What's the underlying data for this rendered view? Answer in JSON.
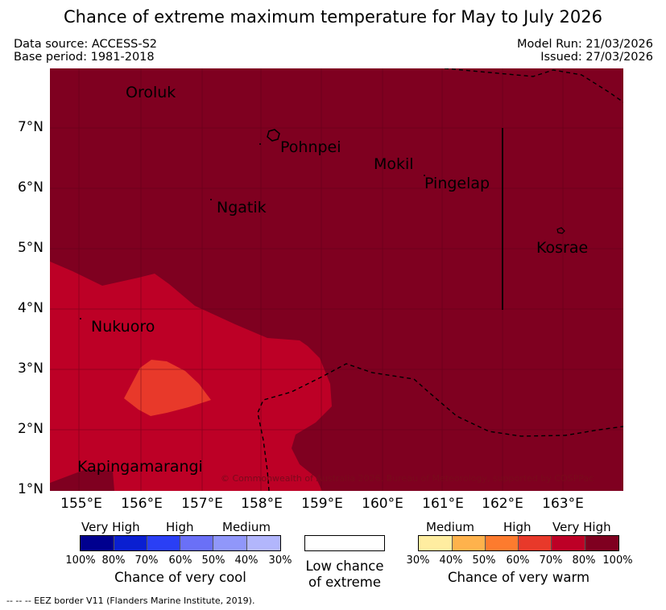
{
  "title": "Chance of extreme maximum temperature for May to July 2026",
  "meta": {
    "data_source": "Data source: ACCESS-S2",
    "base_period": "Base period: 1981-2018",
    "model_run": "Model Run: 21/03/2026",
    "issued": "Issued: 27/03/2026"
  },
  "map": {
    "lat_labels": [
      "7°N",
      "6°N",
      "5°N",
      "4°N",
      "3°N",
      "2°N",
      "1°N"
    ],
    "lon_labels": [
      "155°E",
      "156°E",
      "157°E",
      "158°E",
      "159°E",
      "160°E",
      "161°E",
      "162°E",
      "163°E"
    ],
    "places": {
      "oroluk": "Oroluk",
      "pohnpei": "Pohnpei",
      "mokil": "Mokil",
      "pingelap": "Pingelap",
      "ngatik": "Ngatik",
      "kosrae": "Kosrae",
      "nukuoro": "Nukuoro",
      "kapingamarangi": "Kapingamarangi"
    },
    "credit": "© Commonwealth of Australia 2026, Bureau of Meteorology, supported by COSPPac",
    "colors": {
      "very_high_warm": "#7f0020",
      "high_warm": "#bd0026",
      "medium_warm": "#e8392a"
    }
  },
  "legend": {
    "cool": {
      "levels": [
        "Very High",
        "High",
        "Medium"
      ],
      "percents": [
        "100%",
        "80%",
        "70%",
        "60%",
        "50%",
        "40%",
        "30%"
      ],
      "caption": "Chance of very cool",
      "colors": [
        "#00008f",
        "#0a1fd1",
        "#2a3ff5",
        "#6a70f7",
        "#9097fa",
        "#b2b6fc"
      ]
    },
    "neutral": {
      "caption_line1": "Low chance",
      "caption_line2": "of extreme"
    },
    "warm": {
      "levels": [
        "Medium",
        "High",
        "Very High"
      ],
      "percents": [
        "30%",
        "40%",
        "50%",
        "60%",
        "70%",
        "80%",
        "100%"
      ],
      "caption": "Chance of very warm",
      "colors": [
        "#ffeda0",
        "#feb24c",
        "#fd7b2e",
        "#e8392a",
        "#bd0026",
        "#7f0020"
      ]
    }
  },
  "footnote": "--  --  -- EEZ border V11 (Flanders Marine Institute, 2019)."
}
